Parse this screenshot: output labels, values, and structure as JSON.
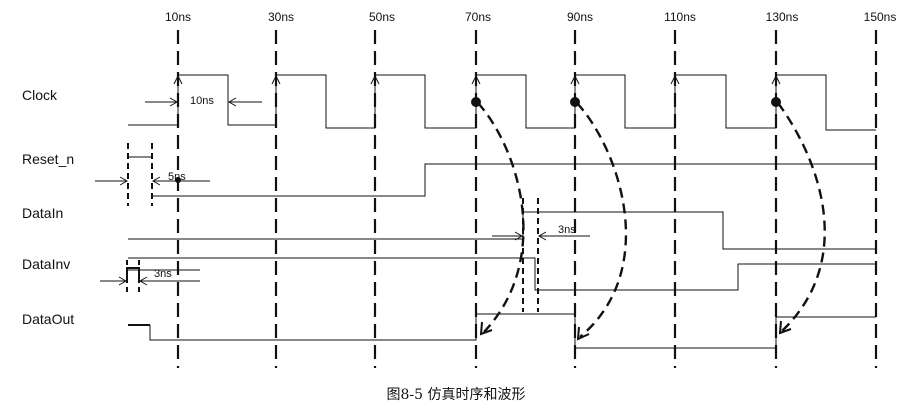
{
  "time_labels": [
    "10ns",
    "30ns",
    "50ns",
    "70ns",
    "90ns",
    "110ns",
    "130ns",
    "150ns"
  ],
  "signals": [
    "Clock",
    "Reset_n",
    "DataIn",
    "DataInv",
    "DataOut"
  ],
  "annotations": {
    "clock_half_period": "10ns",
    "reset_delay": "5ns",
    "datainv_delay": "3ns",
    "datain_delay": "3ns"
  },
  "caption": "图8-5 仿真时序和波形"
}
